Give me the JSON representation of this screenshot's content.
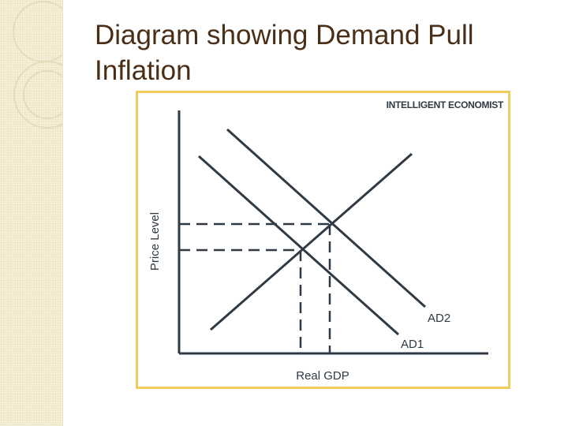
{
  "slide": {
    "title_line1": "Diagram showing Demand Pull",
    "title_line2": "Inflation"
  },
  "diagram": {
    "brand": "INTELLIGENT ECONOMIST",
    "x_axis_label": "Real GDP",
    "y_axis_label": "Price Level",
    "curves": [
      {
        "label": "AD2",
        "kind": "aggregate-demand-shifted"
      },
      {
        "label": "AD1",
        "kind": "aggregate-demand-original"
      },
      {
        "label": "",
        "kind": "aggregate-supply"
      }
    ],
    "colors": {
      "line": "#2f3a44",
      "frame": "#f0cc5c",
      "title": "#4a2f18"
    }
  }
}
